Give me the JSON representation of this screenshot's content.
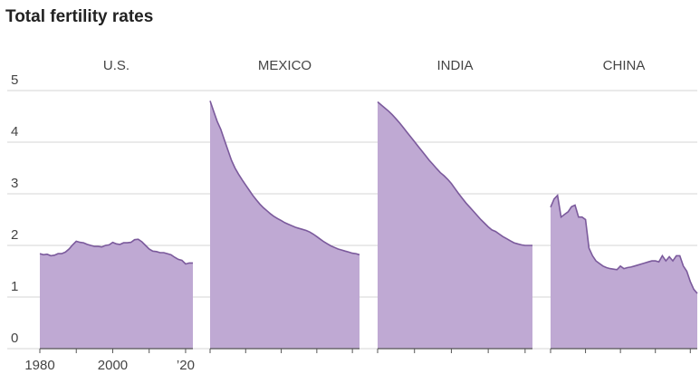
{
  "chart_data": {
    "type": "area",
    "title": "Total fertility rates",
    "x": [
      1980,
      1981,
      1982,
      1983,
      1984,
      1985,
      1986,
      1987,
      1988,
      1989,
      1990,
      1991,
      1992,
      1993,
      1994,
      1995,
      1996,
      1997,
      1998,
      1999,
      2000,
      2001,
      2002,
      2003,
      2004,
      2005,
      2006,
      2007,
      2008,
      2009,
      2010,
      2011,
      2012,
      2013,
      2014,
      2015,
      2016,
      2017,
      2018,
      2019,
      2020,
      2021,
      2022
    ],
    "xlim": [
      1980,
      2022
    ],
    "xticks": [
      1980,
      2000,
      {
        "value": 2020,
        "label": "’20"
      }
    ],
    "xminorticks": [
      1990,
      2010
    ],
    "ylim": [
      0,
      5
    ],
    "yticks": [
      0,
      1,
      2,
      3,
      4,
      5
    ],
    "grid": true,
    "color": "#bfa9d3",
    "line_color": "#7b5a9c",
    "series": [
      {
        "name": "U.S.",
        "values": [
          1.84,
          1.82,
          1.83,
          1.8,
          1.81,
          1.84,
          1.84,
          1.87,
          1.93,
          2.01,
          2.08,
          2.06,
          2.05,
          2.02,
          2.0,
          1.98,
          1.98,
          1.97,
          2.0,
          2.01,
          2.06,
          2.03,
          2.02,
          2.05,
          2.05,
          2.06,
          2.11,
          2.12,
          2.07,
          2.0,
          1.93,
          1.89,
          1.88,
          1.86,
          1.86,
          1.84,
          1.82,
          1.77,
          1.73,
          1.71,
          1.64,
          1.66,
          1.66
        ]
      },
      {
        "name": "MEXICO",
        "values": [
          4.8,
          4.6,
          4.4,
          4.25,
          4.05,
          3.85,
          3.65,
          3.5,
          3.38,
          3.27,
          3.17,
          3.07,
          2.97,
          2.88,
          2.8,
          2.73,
          2.67,
          2.61,
          2.56,
          2.52,
          2.48,
          2.44,
          2.41,
          2.38,
          2.35,
          2.33,
          2.31,
          2.29,
          2.26,
          2.22,
          2.17,
          2.12,
          2.07,
          2.03,
          1.99,
          1.96,
          1.93,
          1.91,
          1.89,
          1.87,
          1.85,
          1.84,
          1.82
        ]
      },
      {
        "name": "INDIA",
        "values": [
          4.78,
          4.72,
          4.66,
          4.6,
          4.53,
          4.45,
          4.37,
          4.28,
          4.19,
          4.1,
          4.01,
          3.92,
          3.83,
          3.74,
          3.65,
          3.57,
          3.49,
          3.41,
          3.35,
          3.28,
          3.2,
          3.1,
          3.0,
          2.91,
          2.82,
          2.74,
          2.66,
          2.58,
          2.5,
          2.43,
          2.36,
          2.3,
          2.27,
          2.22,
          2.17,
          2.13,
          2.09,
          2.05,
          2.03,
          2.01,
          2.0,
          2.0,
          2.0
        ]
      },
      {
        "name": "CHINA",
        "values": [
          2.74,
          2.9,
          2.97,
          2.55,
          2.6,
          2.65,
          2.75,
          2.78,
          2.55,
          2.55,
          2.5,
          1.95,
          1.8,
          1.7,
          1.65,
          1.6,
          1.57,
          1.55,
          1.54,
          1.53,
          1.6,
          1.55,
          1.57,
          1.58,
          1.6,
          1.62,
          1.64,
          1.66,
          1.68,
          1.7,
          1.7,
          1.68,
          1.8,
          1.7,
          1.78,
          1.7,
          1.8,
          1.8,
          1.6,
          1.5,
          1.3,
          1.15,
          1.07
        ]
      }
    ]
  }
}
